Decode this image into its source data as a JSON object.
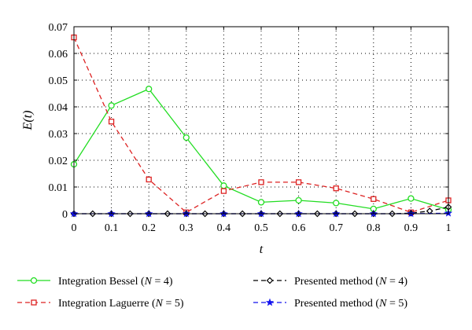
{
  "chart_data": {
    "type": "line",
    "xlabel": "t",
    "ylabel": "E(t)",
    "xlim": [
      0,
      1
    ],
    "ylim": [
      0,
      0.07
    ],
    "xticks": [
      "0",
      "0.1",
      "0.2",
      "0.3",
      "0.4",
      "0.5",
      "0.6",
      "0.7",
      "0.8",
      "0.9",
      "1"
    ],
    "yticks": [
      "0",
      "0.01",
      "0.02",
      "0.03",
      "0.04",
      "0.05",
      "0.06",
      "0.07"
    ],
    "grid": true,
    "legend_position": "bottom",
    "series": [
      {
        "name": "Integration Bessel (N = 4)",
        "color": "#22dd22",
        "line_style": "solid",
        "marker": "circle",
        "x": [
          0,
          0.1,
          0.2,
          0.3,
          0.4,
          0.5,
          0.6,
          0.7,
          0.8,
          0.9,
          1
        ],
        "y": [
          0.0185,
          0.0405,
          0.0467,
          0.0285,
          0.0105,
          0.0043,
          0.005,
          0.004,
          0.0018,
          0.0057,
          0.0015
        ]
      },
      {
        "name": "Integration Laguerre (N = 5)",
        "color": "#dd2222",
        "line_style": "dashed",
        "marker": "square",
        "x": [
          0,
          0.1,
          0.2,
          0.3,
          0.4,
          0.5,
          0.6,
          0.7,
          0.8,
          0.9,
          1
        ],
        "y": [
          0.066,
          0.0345,
          0.0128,
          0.0005,
          0.0085,
          0.0118,
          0.0118,
          0.0095,
          0.0055,
          0.0005,
          0.005
        ]
      },
      {
        "name": "Presented method (N = 4)",
        "color": "#000000",
        "line_style": "dashed",
        "marker": "diamond",
        "x": [
          0,
          0.05,
          0.1,
          0.15,
          0.2,
          0.25,
          0.3,
          0.35,
          0.4,
          0.45,
          0.5,
          0.55,
          0.6,
          0.65,
          0.7,
          0.75,
          0.8,
          0.85,
          0.9,
          0.95,
          1
        ],
        "y": [
          0,
          0,
          0,
          0,
          0,
          0,
          0,
          0,
          0,
          0,
          0,
          0,
          0,
          0,
          0,
          0,
          0,
          0,
          0.0002,
          0.001,
          0.0025
        ]
      },
      {
        "name": "Presented method (N = 5)",
        "color": "#1111ee",
        "line_style": "dashed",
        "marker": "star",
        "x": [
          0,
          0.1,
          0.2,
          0.3,
          0.4,
          0.5,
          0.6,
          0.7,
          0.8,
          0.9,
          1
        ],
        "y": [
          0,
          0,
          0,
          0,
          0,
          0,
          0,
          0,
          0,
          0,
          0.0002
        ]
      }
    ],
    "legend": [
      {
        "name_prefix": "Integration Bessel (",
        "name_var": "N",
        "name_suffix": " = 4)"
      },
      {
        "name_prefix": "Integration Laguerre (",
        "name_var": "N",
        "name_suffix": " = 5)"
      },
      {
        "name_prefix": "Presented method (",
        "name_var": "N",
        "name_suffix": " = 4)"
      },
      {
        "name_prefix": "Presented method (",
        "name_var": "N",
        "name_suffix": " = 5)"
      }
    ]
  }
}
